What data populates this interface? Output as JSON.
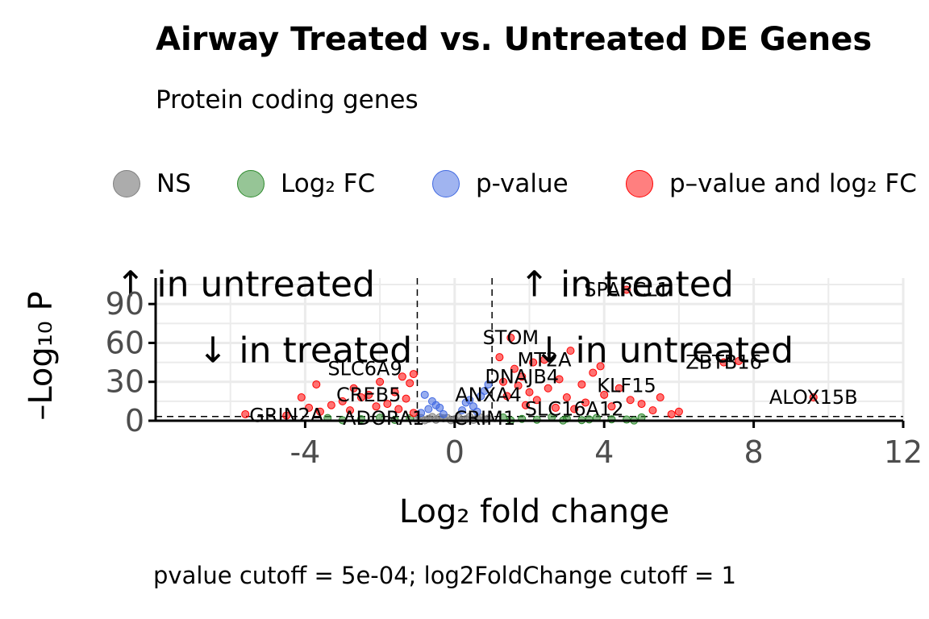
{
  "title": "Airway Treated vs. Untreated DE Genes",
  "subtitle": "Protein coding genes",
  "caption": "pvalue cutoff = 5e-04; log2FoldChange cutoff = 1",
  "legend": {
    "items": [
      {
        "label": "NS",
        "color": "#808080"
      },
      {
        "label": "Log₂ FC",
        "color": "#2e8b2e"
      },
      {
        "label": "p-value",
        "color": "#4169e1"
      },
      {
        "label": "p–value and log₂ FC",
        "color": "#ff0000"
      }
    ]
  },
  "chart_data": {
    "type": "scatter",
    "title": "Airway Treated vs. Untreated DE Genes",
    "subtitle": "Protein coding genes",
    "xlabel": "Log₂ fold change",
    "ylabel": "–Log₁₀ P",
    "xlim": [
      -8,
      12
    ],
    "ylim": [
      0,
      110
    ],
    "xticks": [
      -4,
      0,
      4,
      8,
      12
    ],
    "xtick_labels": [
      "-4",
      "0",
      "4",
      "8",
      "12"
    ],
    "yticks": [
      0,
      30,
      60,
      90
    ],
    "ytick_labels": [
      "0",
      "30",
      "60",
      "90"
    ],
    "grid": true,
    "legend_position": "top",
    "cutoffs": {
      "log2fc": 1,
      "pvalue": 0.0005,
      "neg_log10_p": 3.3
    },
    "region_annotations": [
      {
        "text": "↑ in untreated",
        "x": -5.6,
        "y": 105
      },
      {
        "text": "↑ in treated",
        "x": 4.6,
        "y": 105
      },
      {
        "text": "↓ in treated",
        "x": -4,
        "y": 54
      },
      {
        "text": "↓ in untreated",
        "x": 5.6,
        "y": 54
      }
    ],
    "labeled_genes": [
      {
        "gene": "SPARCL1",
        "x": 4.6,
        "y": 101
      },
      {
        "gene": "STOM",
        "x": 1.5,
        "y": 64
      },
      {
        "gene": "MT2A",
        "x": 2.4,
        "y": 47
      },
      {
        "gene": "ZBTB16",
        "x": 7.2,
        "y": 45
      },
      {
        "gene": "SLC6A9",
        "x": -2.4,
        "y": 40
      },
      {
        "gene": "DNAJB4",
        "x": 1.8,
        "y": 34
      },
      {
        "gene": "KLF15",
        "x": 4.6,
        "y": 27
      },
      {
        "gene": "CREB5",
        "x": -2.3,
        "y": 20
      },
      {
        "gene": "ANXA4",
        "x": 0.9,
        "y": 20
      },
      {
        "gene": "ALOX15B",
        "x": 9.6,
        "y": 18
      },
      {
        "gene": "SLC16A12",
        "x": 3.2,
        "y": 9
      },
      {
        "gene": "GRIN2A",
        "x": -4.5,
        "y": 4
      },
      {
        "gene": "ADORA1",
        "x": -1.9,
        "y": 2
      },
      {
        "gene": "CRIM1",
        "x": 0.8,
        "y": 2
      }
    ],
    "series": [
      {
        "name": "NS",
        "color": "#808080",
        "points": [
          [
            -0.9,
            2.1
          ],
          [
            -0.7,
            1.5
          ],
          [
            -0.5,
            0.8
          ],
          [
            -0.3,
            1.9
          ],
          [
            -0.1,
            0.4
          ],
          [
            0.1,
            2.8
          ],
          [
            0.3,
            1.2
          ],
          [
            0.5,
            0.6
          ],
          [
            0.7,
            2.4
          ],
          [
            0.9,
            1.6
          ],
          [
            -0.8,
            0.3
          ],
          [
            -0.4,
            2.6
          ],
          [
            0.0,
            1.1
          ],
          [
            0.4,
            3.0
          ],
          [
            0.8,
            0.9
          ],
          [
            -0.6,
            2.9
          ],
          [
            0.2,
            0.2
          ],
          [
            0.6,
            1.8
          ],
          [
            -0.2,
            2.2
          ],
          [
            -1.0,
            0.7
          ]
        ]
      },
      {
        "name": "Log₂ FC",
        "color": "#2e8b2e",
        "points": [
          [
            1.3,
            2.5
          ],
          [
            1.8,
            1.4
          ],
          [
            2.2,
            0.8
          ],
          [
            2.6,
            2.9
          ],
          [
            3.0,
            1.7
          ],
          [
            3.4,
            0.5
          ],
          [
            3.8,
            2.2
          ],
          [
            4.2,
            1.1
          ],
          [
            4.6,
            0.9
          ],
          [
            5.0,
            2.6
          ],
          [
            -1.2,
            1.9
          ],
          [
            -1.6,
            0.6
          ],
          [
            -2.0,
            2.3
          ],
          [
            -2.5,
            1.2
          ],
          [
            -3.0,
            0.4
          ],
          [
            -3.4,
            2.1
          ],
          [
            1.5,
            0.3
          ],
          [
            2.9,
            0.2
          ],
          [
            3.6,
            1.0
          ],
          [
            4.8,
            0.2
          ]
        ]
      },
      {
        "name": "p-value",
        "color": "#4169e1",
        "points": [
          [
            -0.9,
            6
          ],
          [
            -0.7,
            9
          ],
          [
            -0.5,
            12
          ],
          [
            -0.3,
            5
          ],
          [
            -0.6,
            15
          ],
          [
            -0.8,
            20
          ],
          [
            0.2,
            8
          ],
          [
            0.5,
            11
          ],
          [
            0.7,
            19
          ],
          [
            0.9,
            28
          ],
          [
            0.4,
            16
          ],
          [
            0.8,
            23
          ],
          [
            0.6,
            7
          ],
          [
            -0.4,
            10
          ],
          [
            0.3,
            14
          ]
        ]
      },
      {
        "name": "p–value and log₂ FC",
        "color": "#ff0000",
        "points": [
          [
            -5.6,
            5
          ],
          [
            -4.5,
            4
          ],
          [
            -4.1,
            18
          ],
          [
            -3.9,
            10
          ],
          [
            -3.6,
            7
          ],
          [
            -3.7,
            28
          ],
          [
            -3.3,
            12
          ],
          [
            -3.0,
            15
          ],
          [
            -2.8,
            8
          ],
          [
            -2.7,
            25
          ],
          [
            -2.5,
            18
          ],
          [
            -2.3,
            20
          ],
          [
            -2.1,
            11
          ],
          [
            -2.0,
            30
          ],
          [
            -1.8,
            13
          ],
          [
            -1.6,
            22
          ],
          [
            -1.5,
            9
          ],
          [
            -1.4,
            34
          ],
          [
            -1.3,
            17
          ],
          [
            -1.2,
            29
          ],
          [
            -1.1,
            36
          ],
          [
            -1.1,
            6
          ],
          [
            1.2,
            49
          ],
          [
            1.3,
            30
          ],
          [
            1.4,
            19
          ],
          [
            1.5,
            64
          ],
          [
            1.6,
            40
          ],
          [
            1.7,
            27
          ],
          [
            1.8,
            34
          ],
          [
            1.9,
            12
          ],
          [
            2.0,
            22
          ],
          [
            2.1,
            45
          ],
          [
            2.2,
            16
          ],
          [
            2.4,
            47
          ],
          [
            2.5,
            25
          ],
          [
            2.7,
            10
          ],
          [
            2.8,
            32
          ],
          [
            3.0,
            18
          ],
          [
            3.1,
            54
          ],
          [
            3.2,
            9
          ],
          [
            3.4,
            28
          ],
          [
            3.5,
            14
          ],
          [
            3.7,
            37
          ],
          [
            3.9,
            42
          ],
          [
            4.0,
            20
          ],
          [
            4.2,
            11
          ],
          [
            4.4,
            25
          ],
          [
            4.6,
            101
          ],
          [
            4.7,
            16
          ],
          [
            5.0,
            13
          ],
          [
            5.3,
            8
          ],
          [
            5.5,
            18
          ],
          [
            5.8,
            5
          ],
          [
            6.0,
            7
          ],
          [
            7.2,
            45
          ],
          [
            7.6,
            46
          ],
          [
            9.6,
            18
          ]
        ]
      }
    ]
  }
}
